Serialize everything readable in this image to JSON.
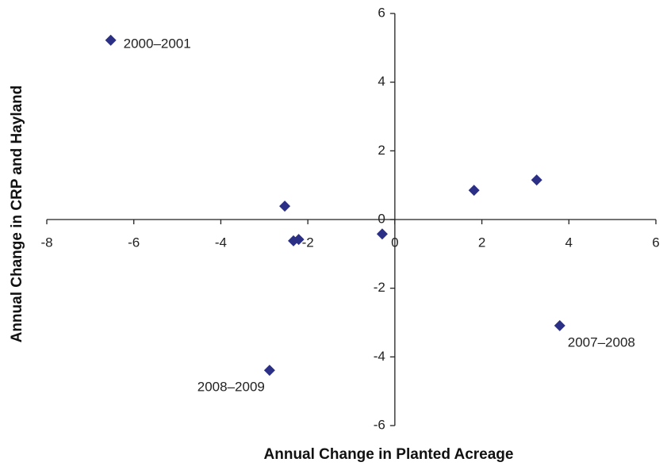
{
  "chart_data": {
    "type": "scatter",
    "x_label": "Annual Change in Planted Acreage",
    "y_label": "Annual Change in CRP and Hayland",
    "x": [
      -6.53,
      -2.53,
      -2.33,
      -2.21,
      -0.29,
      1.82,
      3.26,
      3.79,
      -2.88
    ],
    "y": [
      5.22,
      0.39,
      -0.62,
      -0.58,
      -0.42,
      0.85,
      1.15,
      -3.09,
      -4.39
    ],
    "labels": [
      "2000–2001",
      null,
      null,
      null,
      null,
      null,
      null,
      "2007–2008",
      "2008–2009"
    ],
    "color": "#2b2f86",
    "xlim": [
      -8,
      6
    ],
    "xticks": [
      -8,
      -6,
      -4,
      -2,
      0,
      2,
      4,
      6
    ],
    "ylim": [
      -6,
      6
    ],
    "yticks": [
      -6,
      -4,
      -2,
      0,
      2,
      4,
      6
    ]
  }
}
